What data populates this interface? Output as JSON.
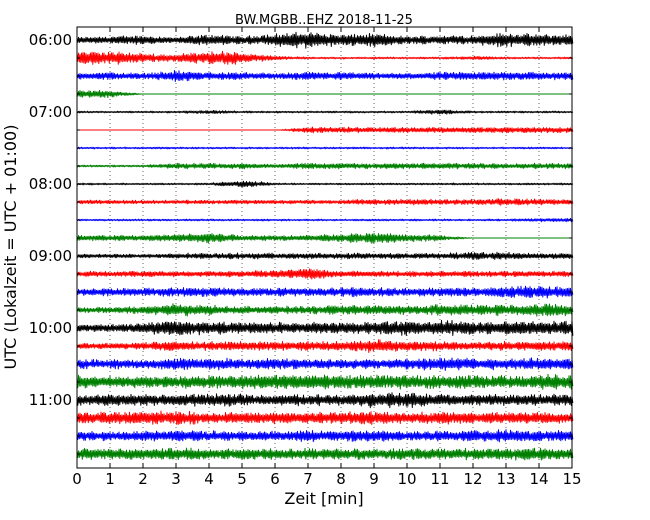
{
  "chart_data": {
    "type": "line",
    "title": "BW.MGBB..EHZ 2018-11-25",
    "xlabel": "Zeit  [min]",
    "ylabel": "UTC (Lokalzeit = UTC + 01:00)",
    "xlim": [
      0,
      15
    ],
    "x_ticks": [
      0,
      1,
      2,
      3,
      4,
      5,
      6,
      7,
      8,
      9,
      10,
      11,
      12,
      13,
      14,
      15
    ],
    "y_tick_labels": [
      "06:00",
      "07:00",
      "08:00",
      "09:00",
      "10:00",
      "11:00"
    ],
    "grid": "vertical dotted lines at each minute",
    "trace_colors": [
      "#000000",
      "#ff0000",
      "#0000ff",
      "#008000"
    ],
    "traces": [
      {
        "start": "06:00",
        "amplitude": [
          3,
          4,
          5,
          3,
          6,
          4,
          7,
          9,
          6,
          7,
          4,
          5,
          5,
          8,
          6,
          6
        ]
      },
      {
        "start": "06:15",
        "amplitude": [
          8,
          7,
          5,
          4,
          8,
          6,
          2,
          1,
          1,
          1,
          1,
          1,
          2,
          1,
          1,
          1
        ]
      },
      {
        "start": "06:30",
        "amplitude": [
          4,
          4,
          3,
          6,
          4,
          4,
          3,
          4,
          4,
          3,
          3,
          4,
          4,
          5,
          4,
          4
        ]
      },
      {
        "start": "06:45",
        "amplitude": [
          4,
          4,
          0,
          0,
          0,
          0,
          0,
          0,
          0,
          0,
          0,
          0,
          0,
          0,
          0,
          0
        ]
      },
      {
        "start": "07:00",
        "amplitude": [
          1,
          1,
          1,
          1,
          2,
          1,
          1,
          1,
          1,
          1,
          1,
          3,
          1,
          1,
          1,
          1
        ]
      },
      {
        "start": "07:15",
        "amplitude": [
          0,
          0,
          0,
          0,
          0,
          0,
          0,
          3,
          3,
          3,
          3,
          3,
          3,
          3,
          3,
          3
        ]
      },
      {
        "start": "07:30",
        "amplitude": [
          1,
          1,
          1,
          1,
          1,
          1,
          1,
          1,
          1,
          1,
          1,
          1,
          1,
          1,
          1,
          1
        ]
      },
      {
        "start": "07:45",
        "amplitude": [
          1,
          1,
          1,
          3,
          3,
          3,
          2,
          3,
          3,
          3,
          3,
          3,
          3,
          3,
          3,
          3
        ]
      },
      {
        "start": "08:00",
        "amplitude": [
          1,
          1,
          1,
          1,
          1,
          4,
          1,
          1,
          1,
          1,
          1,
          1,
          1,
          1,
          1,
          1
        ]
      },
      {
        "start": "08:15",
        "amplitude": [
          2,
          2,
          2,
          2,
          2,
          2,
          2,
          2,
          2,
          3,
          3,
          3,
          3,
          4,
          3,
          3
        ]
      },
      {
        "start": "08:30",
        "amplitude": [
          1,
          1,
          1,
          1,
          1,
          1,
          1,
          1,
          1,
          1,
          1,
          1,
          1,
          1,
          2,
          2
        ]
      },
      {
        "start": "08:45",
        "amplitude": [
          3,
          3,
          3,
          4,
          6,
          3,
          3,
          3,
          5,
          6,
          4,
          3,
          0,
          0,
          0,
          0
        ]
      },
      {
        "start": "09:00",
        "amplitude": [
          2,
          2,
          2,
          3,
          3,
          3,
          3,
          3,
          3,
          3,
          3,
          3,
          4,
          4,
          3,
          3
        ]
      },
      {
        "start": "09:15",
        "amplitude": [
          3,
          3,
          3,
          3,
          3,
          3,
          4,
          7,
          3,
          3,
          3,
          3,
          3,
          3,
          3,
          3
        ]
      },
      {
        "start": "09:30",
        "amplitude": [
          4,
          4,
          4,
          5,
          5,
          4,
          5,
          4,
          5,
          5,
          4,
          5,
          5,
          6,
          7,
          5
        ]
      },
      {
        "start": "09:45",
        "amplitude": [
          3,
          3,
          4,
          7,
          5,
          4,
          4,
          4,
          5,
          5,
          5,
          6,
          6,
          6,
          7,
          6
        ]
      },
      {
        "start": "10:00",
        "amplitude": [
          4,
          4,
          6,
          9,
          7,
          6,
          6,
          6,
          6,
          7,
          8,
          8,
          7,
          7,
          8,
          8
        ]
      },
      {
        "start": "10:15",
        "amplitude": [
          3,
          3,
          4,
          5,
          5,
          5,
          5,
          5,
          5,
          7,
          6,
          5,
          4,
          5,
          5,
          5
        ]
      },
      {
        "start": "10:30",
        "amplitude": [
          5,
          5,
          5,
          6,
          6,
          6,
          6,
          5,
          5,
          6,
          6,
          7,
          6,
          6,
          7,
          6
        ]
      },
      {
        "start": "10:45",
        "amplitude": [
          7,
          6,
          6,
          7,
          7,
          7,
          8,
          8,
          7,
          8,
          7,
          7,
          7,
          7,
          8,
          8
        ]
      },
      {
        "start": "11:00",
        "amplitude": [
          6,
          6,
          6,
          6,
          7,
          6,
          6,
          6,
          6,
          8,
          8,
          6,
          6,
          6,
          6,
          6
        ]
      },
      {
        "start": "11:15",
        "amplitude": [
          6,
          7,
          7,
          8,
          6,
          6,
          6,
          6,
          7,
          7,
          6,
          7,
          6,
          6,
          6,
          6
        ]
      },
      {
        "start": "11:30",
        "amplitude": [
          5,
          5,
          6,
          6,
          6,
          5,
          5,
          6,
          6,
          6,
          5,
          6,
          6,
          7,
          6,
          6
        ]
      },
      {
        "start": "11:45",
        "amplitude": [
          6,
          6,
          6,
          7,
          6,
          6,
          6,
          6,
          6,
          6,
          6,
          6,
          6,
          6,
          7,
          6
        ]
      }
    ]
  }
}
